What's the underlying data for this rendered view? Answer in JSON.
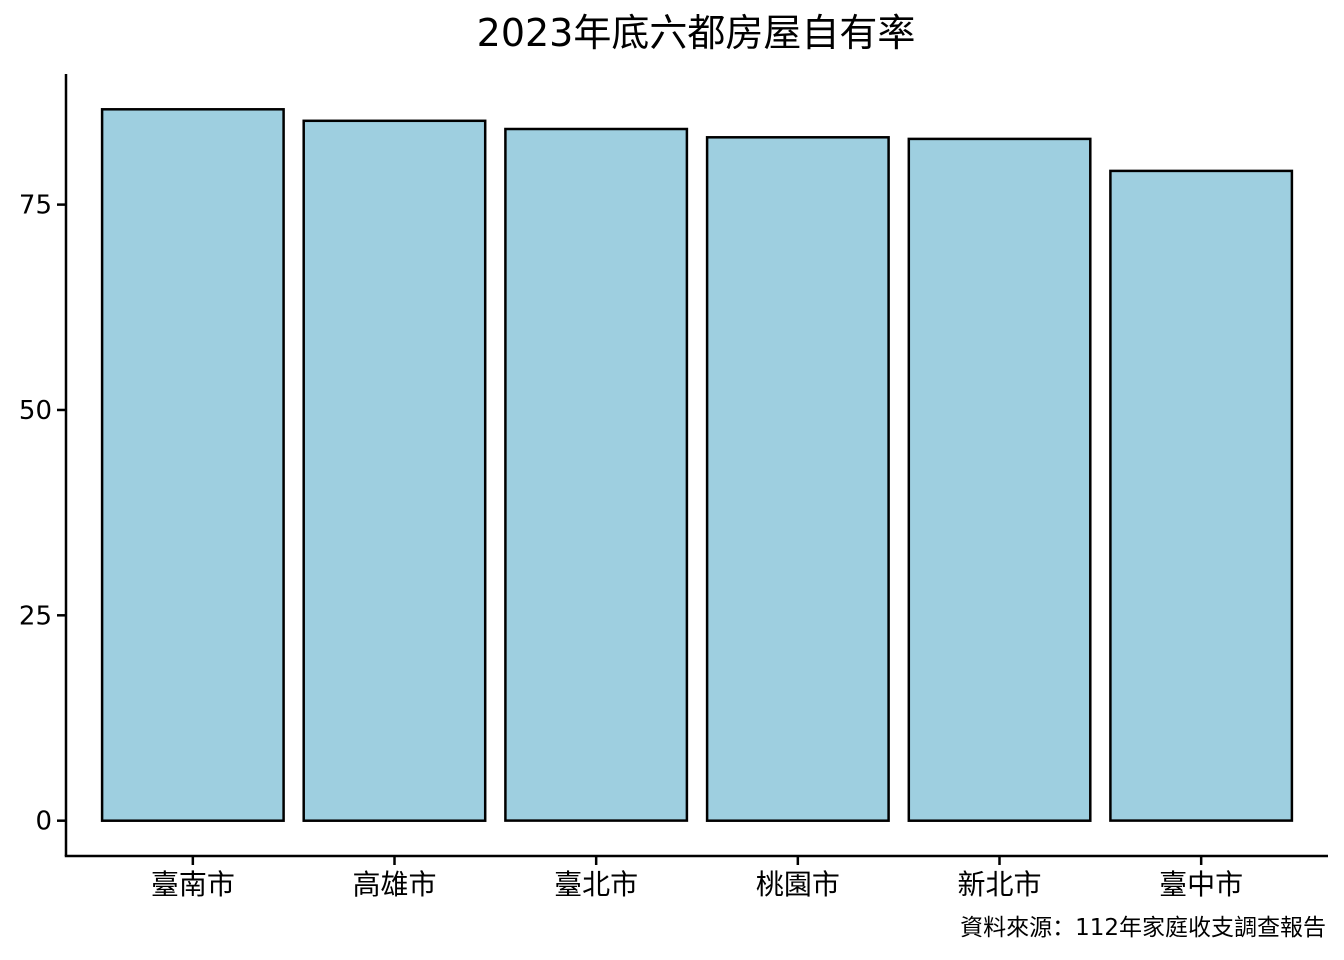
{
  "chart_data": {
    "type": "bar",
    "title": "2023年底六都房屋自有率",
    "caption": "資料來源：112年家庭收支調查報告",
    "xlabel": "",
    "ylabel": "",
    "categories": [
      "臺南市",
      "高雄市",
      "臺北市",
      "桃園市",
      "新北市",
      "臺中市"
    ],
    "values": [
      86.6,
      85.2,
      84.2,
      83.2,
      83.0,
      79.1
    ],
    "ylim": [
      -4.3,
      90.9
    ],
    "yticks": [
      0,
      25,
      50,
      75
    ],
    "grid": false,
    "legend": "none",
    "colors": {
      "bar_fill": "#9ecfe0",
      "bar_stroke": "#000000",
      "axis": "#000000",
      "background": "#ffffff"
    }
  }
}
